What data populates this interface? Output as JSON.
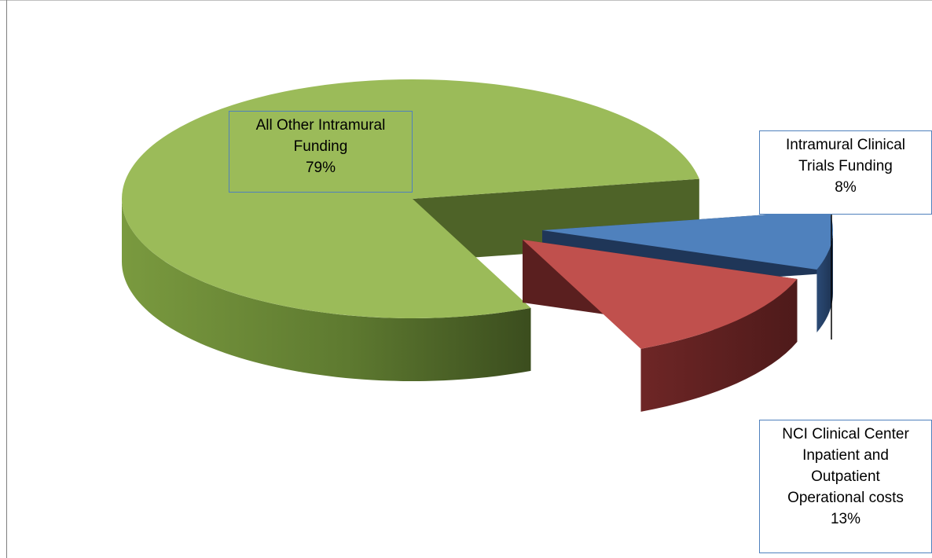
{
  "chart_data": {
    "type": "pie",
    "style": "3d-exploded",
    "title": "",
    "slices": [
      {
        "name": "All Other Intramural Funding",
        "value": 79,
        "label": "79%",
        "color": "#9bbb59"
      },
      {
        "name": "Intramural Clinical Trials Funding",
        "value": 8,
        "label": "8%",
        "color": "#4f81bd"
      },
      {
        "name": "NCI Clinical Center Inpatient and Outpatient Operational costs",
        "value": 13,
        "label": "13%",
        "color": "#c0504d"
      }
    ],
    "label_lines": [
      [
        "All Other Intramural",
        "Funding",
        "79%"
      ],
      [
        "Intramural Clinical",
        "Trials Funding",
        "8%"
      ],
      [
        "NCI Clinical Center",
        "Inpatient and",
        "Outpatient",
        "Operational costs",
        "13%"
      ]
    ],
    "legend": "none"
  }
}
